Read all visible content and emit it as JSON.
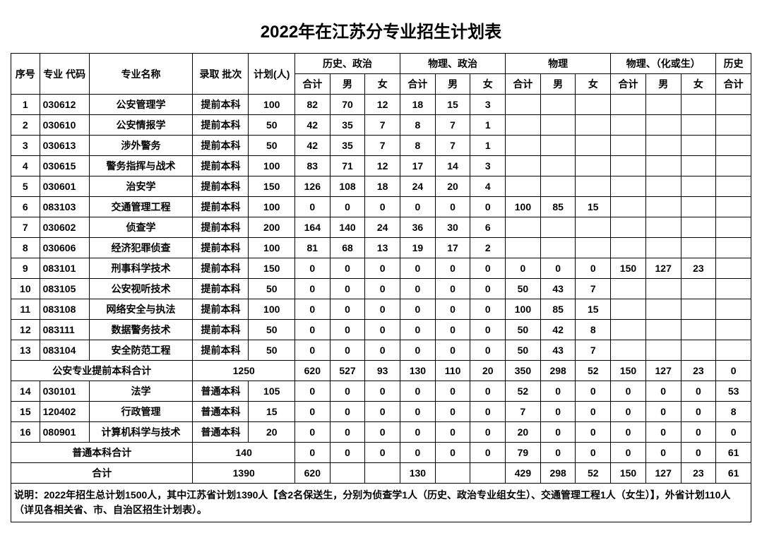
{
  "title": "2022年在江苏分专业招生计划表",
  "headers": {
    "c0": "序号",
    "c1": "专业\n代码",
    "c2": "专业名称",
    "c3": "录取\n批次",
    "c4": "计划(人)",
    "g1": "历史、政治",
    "g2": "物理、政治",
    "g3": "物理",
    "g4": "物理、（化或生）",
    "g5": "历史",
    "sub_total": "合计",
    "sub_m": "男",
    "sub_f": "女"
  },
  "rows": [
    {
      "n": "1",
      "code": "030612",
      "name": "公安管理学",
      "batch": "提前本科",
      "plan": "100",
      "a": [
        "82",
        "70",
        "12"
      ],
      "b": [
        "18",
        "15",
        "3"
      ],
      "c": [
        "",
        "",
        ""
      ],
      "d": [
        "",
        "",
        ""
      ],
      "e": ""
    },
    {
      "n": "2",
      "code": "030610",
      "name": "公安情报学",
      "batch": "提前本科",
      "plan": "50",
      "a": [
        "42",
        "35",
        "7"
      ],
      "b": [
        "8",
        "7",
        "1"
      ],
      "c": [
        "",
        "",
        ""
      ],
      "d": [
        "",
        "",
        ""
      ],
      "e": ""
    },
    {
      "n": "3",
      "code": "030613",
      "name": "涉外警务",
      "batch": "提前本科",
      "plan": "50",
      "a": [
        "42",
        "35",
        "7"
      ],
      "b": [
        "8",
        "7",
        "1"
      ],
      "c": [
        "",
        "",
        ""
      ],
      "d": [
        "",
        "",
        ""
      ],
      "e": ""
    },
    {
      "n": "4",
      "code": "030615",
      "name": "警务指挥与战术",
      "batch": "提前本科",
      "plan": "100",
      "a": [
        "83",
        "71",
        "12"
      ],
      "b": [
        "17",
        "14",
        "3"
      ],
      "c": [
        "",
        "",
        ""
      ],
      "d": [
        "",
        "",
        ""
      ],
      "e": ""
    },
    {
      "n": "5",
      "code": "030601",
      "name": "治安学",
      "batch": "提前本科",
      "plan": "150",
      "a": [
        "126",
        "108",
        "18"
      ],
      "b": [
        "24",
        "20",
        "4"
      ],
      "c": [
        "",
        "",
        ""
      ],
      "d": [
        "",
        "",
        ""
      ],
      "e": ""
    },
    {
      "n": "6",
      "code": "083103",
      "name": "交通管理工程",
      "batch": "提前本科",
      "plan": "100",
      "a": [
        "0",
        "0",
        "0"
      ],
      "b": [
        "0",
        "0",
        "0"
      ],
      "c": [
        "100",
        "85",
        "15"
      ],
      "d": [
        "",
        "",
        ""
      ],
      "e": ""
    },
    {
      "n": "7",
      "code": "030602",
      "name": "侦查学",
      "batch": "提前本科",
      "plan": "200",
      "a": [
        "164",
        "140",
        "24"
      ],
      "b": [
        "36",
        "30",
        "6"
      ],
      "c": [
        "",
        "",
        ""
      ],
      "d": [
        "",
        "",
        ""
      ],
      "e": ""
    },
    {
      "n": "8",
      "code": "030606",
      "name": "经济犯罪侦查",
      "batch": "提前本科",
      "plan": "100",
      "a": [
        "81",
        "68",
        "13"
      ],
      "b": [
        "19",
        "17",
        "2"
      ],
      "c": [
        "",
        "",
        ""
      ],
      "d": [
        "",
        "",
        ""
      ],
      "e": ""
    },
    {
      "n": "9",
      "code": "083101",
      "name": "刑事科学技术",
      "batch": "提前本科",
      "plan": "150",
      "a": [
        "0",
        "0",
        "0"
      ],
      "b": [
        "0",
        "0",
        "0"
      ],
      "c": [
        "0",
        "0",
        "0"
      ],
      "d": [
        "150",
        "127",
        "23"
      ],
      "e": ""
    },
    {
      "n": "10",
      "code": "083105",
      "name": "公安视听技术",
      "batch": "提前本科",
      "plan": "50",
      "a": [
        "0",
        "0",
        "0"
      ],
      "b": [
        "0",
        "0",
        "0"
      ],
      "c": [
        "50",
        "43",
        "7"
      ],
      "d": [
        "",
        "",
        ""
      ],
      "e": ""
    },
    {
      "n": "11",
      "code": "083108",
      "name": "网络安全与执法",
      "batch": "提前本科",
      "plan": "100",
      "a": [
        "0",
        "0",
        "0"
      ],
      "b": [
        "0",
        "0",
        "0"
      ],
      "c": [
        "100",
        "85",
        "15"
      ],
      "d": [
        "",
        "",
        ""
      ],
      "e": ""
    },
    {
      "n": "12",
      "code": "083111",
      "name": "数据警务技术",
      "batch": "提前本科",
      "plan": "50",
      "a": [
        "0",
        "0",
        "0"
      ],
      "b": [
        "0",
        "0",
        "0"
      ],
      "c": [
        "50",
        "42",
        "8"
      ],
      "d": [
        "",
        "",
        ""
      ],
      "e": ""
    },
    {
      "n": "13",
      "code": "083104",
      "name": "安全防范工程",
      "batch": "提前本科",
      "plan": "50",
      "a": [
        "0",
        "0",
        "0"
      ],
      "b": [
        "0",
        "0",
        "0"
      ],
      "c": [
        "50",
        "43",
        "7"
      ],
      "d": [
        "",
        "",
        ""
      ],
      "e": ""
    }
  ],
  "subtotal1": {
    "label": "公安专业提前本科合计",
    "plan": "1250",
    "a": [
      "620",
      "527",
      "93"
    ],
    "b": [
      "130",
      "110",
      "20"
    ],
    "c": [
      "350",
      "298",
      "52"
    ],
    "d": [
      "150",
      "127",
      "23"
    ],
    "e": "0"
  },
  "rows2": [
    {
      "n": "14",
      "code": "030101",
      "name": "法学",
      "batch": "普通本科",
      "plan": "105",
      "a": [
        "0",
        "0",
        "0"
      ],
      "b": [
        "0",
        "0",
        "0"
      ],
      "c": [
        "52",
        "0",
        "0"
      ],
      "d": [
        "0",
        "0",
        "0"
      ],
      "e": "53"
    },
    {
      "n": "15",
      "code": "120402",
      "name": "行政管理",
      "batch": "普通本科",
      "plan": "15",
      "a": [
        "0",
        "0",
        "0"
      ],
      "b": [
        "0",
        "0",
        "0"
      ],
      "c": [
        "7",
        "0",
        "0"
      ],
      "d": [
        "0",
        "0",
        "0"
      ],
      "e": "8"
    },
    {
      "n": "16",
      "code": "080901",
      "name": "计算机科学与技术",
      "batch": "普通本科",
      "plan": "20",
      "a": [
        "0",
        "0",
        "0"
      ],
      "b": [
        "0",
        "0",
        "0"
      ],
      "c": [
        "20",
        "0",
        "0"
      ],
      "d": [
        "0",
        "0",
        "0"
      ],
      "e": "0"
    }
  ],
  "subtotal2": {
    "label": "普通本科合计",
    "plan": "140",
    "a": [
      "0",
      "0",
      "0"
    ],
    "b": [
      "0",
      "0",
      "0"
    ],
    "c": [
      "79",
      "0",
      "0"
    ],
    "d": [
      "0",
      "0",
      "0"
    ],
    "e": "61"
  },
  "grand": {
    "label": "合计",
    "plan": "1390",
    "a": [
      "620",
      "",
      ""
    ],
    "b": [
      "130",
      "",
      ""
    ],
    "c": [
      "429",
      "298",
      "52"
    ],
    "d": [
      "150",
      "127",
      "23"
    ],
    "e": "61"
  },
  "footnote": "说明：2022年招生总计划1500人，其中江苏省计划1390人【含2名保送生，分别为侦查学1人（历史、政治专业组女生）、交通管理工程1人（女生）】，外省计划110人（详见各相关省、市、自治区招生计划表）。"
}
